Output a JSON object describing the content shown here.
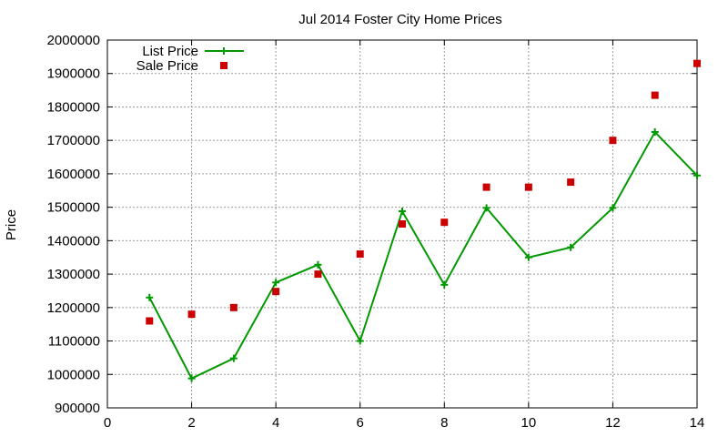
{
  "chart_data": {
    "type": "line",
    "title": "Jul 2014 Foster City Home Prices",
    "xlabel": "",
    "ylabel": "Price",
    "xlim": [
      0,
      14
    ],
    "ylim": [
      900000,
      2000000
    ],
    "x_ticks": [
      0,
      2,
      4,
      6,
      8,
      10,
      12,
      14
    ],
    "y_ticks": [
      900000,
      1000000,
      1100000,
      1200000,
      1300000,
      1400000,
      1500000,
      1600000,
      1700000,
      1800000,
      1900000,
      2000000
    ],
    "grid": true,
    "legend_position": "top-left",
    "series": [
      {
        "name": "List Price",
        "style": "line+cross",
        "color": "#009900",
        "x": [
          1,
          2,
          3,
          4,
          5,
          6,
          7,
          8,
          9,
          10,
          11,
          12,
          13,
          14
        ],
        "values": [
          1230000,
          988000,
          1048000,
          1275000,
          1328000,
          1100000,
          1488000,
          1268000,
          1498000,
          1350000,
          1380000,
          1498000,
          1725000,
          1595000
        ]
      },
      {
        "name": "Sale Price",
        "style": "square",
        "color": "#cc0000",
        "x": [
          1,
          2,
          3,
          4,
          5,
          6,
          7,
          8,
          9,
          10,
          11,
          12,
          13,
          14
        ],
        "values": [
          1160000,
          1180000,
          1200000,
          1248000,
          1300000,
          1360000,
          1450000,
          1455000,
          1560000,
          1560000,
          1575000,
          1700000,
          1835000,
          1930000
        ]
      }
    ]
  }
}
